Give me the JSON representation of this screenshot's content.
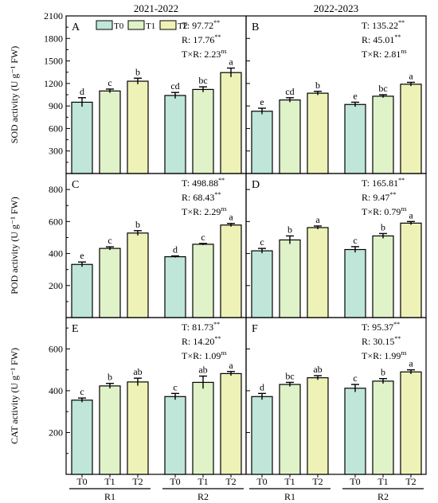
{
  "figure": {
    "column_titles": [
      "2021-2022",
      "2022-2023"
    ],
    "legend": [
      "T0",
      "T1",
      "T2"
    ],
    "colors": {
      "T0": "#bfe6d8",
      "T1": "#dff2c8",
      "T2": "#eef2b6"
    },
    "x_tick_labels": [
      "T0",
      "T1",
      "T2",
      "T0",
      "T1",
      "T2"
    ],
    "group_labels": [
      "R1",
      "R2"
    ]
  },
  "chart_data": [
    {
      "type": "bar",
      "panel": "A",
      "row": 0,
      "col": 0,
      "ylabel": "SOD activity (U g⁻¹ FW)",
      "ylim": [
        0,
        2100
      ],
      "yticks": [
        300,
        600,
        900,
        1200,
        1500,
        1800,
        2100
      ],
      "groups": [
        "R1",
        "R2"
      ],
      "treatments": [
        "T0",
        "T1",
        "T2"
      ],
      "values": [
        [
          950,
          1100,
          1230
        ],
        [
          1040,
          1120,
          1345
        ]
      ],
      "errors": [
        [
          60,
          25,
          40
        ],
        [
          40,
          35,
          60
        ]
      ],
      "letters": [
        [
          "d",
          "c",
          "b"
        ],
        [
          "cd",
          "bc",
          "a"
        ]
      ],
      "stats": [
        {
          "name": "T: ",
          "value": "97.72",
          "sig": "**"
        },
        {
          "name": "R: ",
          "value": "17.76",
          "sig": "**"
        },
        {
          "name": "T×R: ",
          "value": "2.23",
          "sig": "ns"
        }
      ]
    },
    {
      "type": "bar",
      "panel": "B",
      "row": 0,
      "col": 1,
      "ylabel": "",
      "ylim": [
        0,
        2100
      ],
      "yticks": [
        300,
        600,
        900,
        1200,
        1500,
        1800,
        2100
      ],
      "groups": [
        "R1",
        "R2"
      ],
      "treatments": [
        "T0",
        "T1",
        "T2"
      ],
      "values": [
        [
          830,
          980,
          1070
        ],
        [
          920,
          1030,
          1190
        ]
      ],
      "errors": [
        [
          40,
          30,
          25
        ],
        [
          30,
          20,
          25
        ]
      ],
      "letters": [
        [
          "e",
          "cd",
          "b"
        ],
        [
          "e",
          "bc",
          "a"
        ]
      ],
      "stats": [
        {
          "name": "T: ",
          "value": "135.22",
          "sig": "**"
        },
        {
          "name": "R: ",
          "value": "45.01",
          "sig": "**"
        },
        {
          "name": "T×R: ",
          "value": "2.81",
          "sig": "ns"
        }
      ]
    },
    {
      "type": "bar",
      "panel": "C",
      "row": 1,
      "col": 0,
      "ylabel": "POD activity (U g⁻¹ FW)",
      "ylim": [
        0,
        900
      ],
      "yticks": [
        200,
        400,
        600,
        800
      ],
      "groups": [
        "R1",
        "R2"
      ],
      "treatments": [
        "T0",
        "T1",
        "T2"
      ],
      "values": [
        [
          332,
          432,
          528
        ],
        [
          380,
          458,
          578
        ]
      ],
      "errors": [
        [
          15,
          10,
          15
        ],
        [
          5,
          5,
          10
        ]
      ],
      "letters": [
        [
          "e",
          "c",
          "b"
        ],
        [
          "d",
          "c",
          "a"
        ]
      ],
      "stats": [
        {
          "name": "T: ",
          "value": "498.88",
          "sig": "**"
        },
        {
          "name": "R: ",
          "value": "68.43",
          "sig": "**"
        },
        {
          "name": "T×R: ",
          "value": "2.29",
          "sig": "ns"
        }
      ]
    },
    {
      "type": "bar",
      "panel": "D",
      "row": 1,
      "col": 1,
      "ylabel": "",
      "ylim": [
        0,
        900
      ],
      "yticks": [
        200,
        400,
        600,
        800
      ],
      "groups": [
        "R1",
        "R2"
      ],
      "treatments": [
        "T0",
        "T1",
        "T2"
      ],
      "values": [
        [
          417,
          485,
          562
        ],
        [
          425,
          510,
          590
        ]
      ],
      "errors": [
        [
          15,
          25,
          10
        ],
        [
          18,
          15,
          10
        ]
      ],
      "letters": [
        [
          "c",
          "b",
          "a"
        ],
        [
          "c",
          "b",
          "a"
        ]
      ],
      "stats": [
        {
          "name": "T: ",
          "value": "165.81",
          "sig": "**"
        },
        {
          "name": "R: ",
          "value": "9.47",
          "sig": "**"
        },
        {
          "name": "T×R: ",
          "value": "0.79",
          "sig": "ns"
        }
      ]
    },
    {
      "type": "bar",
      "panel": "E",
      "row": 2,
      "col": 0,
      "ylabel": "CAT activity (U g⁻¹ FW)",
      "ylim": [
        0,
        750
      ],
      "yticks": [
        200,
        400,
        600
      ],
      "groups": [
        "R1",
        "R2"
      ],
      "treatments": [
        "T0",
        "T1",
        "T2"
      ],
      "values": [
        [
          355,
          423,
          442
        ],
        [
          372,
          440,
          482
        ]
      ],
      "errors": [
        [
          10,
          12,
          18
        ],
        [
          15,
          30,
          10
        ]
      ],
      "letters": [
        [
          "c",
          "b",
          "ab"
        ],
        [
          "c",
          "ab",
          "a"
        ]
      ],
      "stats": [
        {
          "name": "T: ",
          "value": "81.73",
          "sig": "**"
        },
        {
          "name": "R: ",
          "value": "14.20",
          "sig": "**"
        },
        {
          "name": "T×R: ",
          "value": "1.09",
          "sig": "ns"
        }
      ]
    },
    {
      "type": "bar",
      "panel": "F",
      "row": 2,
      "col": 1,
      "ylabel": "",
      "ylim": [
        0,
        750
      ],
      "yticks": [
        200,
        400,
        600
      ],
      "groups": [
        "R1",
        "R2"
      ],
      "treatments": [
        "T0",
        "T1",
        "T2"
      ],
      "values": [
        [
          372,
          430,
          462
        ],
        [
          412,
          446,
          490
        ]
      ],
      "errors": [
        [
          15,
          10,
          10
        ],
        [
          18,
          12,
          10
        ]
      ],
      "letters": [
        [
          "d",
          "bc",
          "ab"
        ],
        [
          "c",
          "b",
          "a"
        ]
      ],
      "stats": [
        {
          "name": "T: ",
          "value": "95.37",
          "sig": "**"
        },
        {
          "name": "R: ",
          "value": "30.15",
          "sig": "**"
        },
        {
          "name": "T×R: ",
          "value": "1.99",
          "sig": "ns"
        }
      ]
    }
  ]
}
